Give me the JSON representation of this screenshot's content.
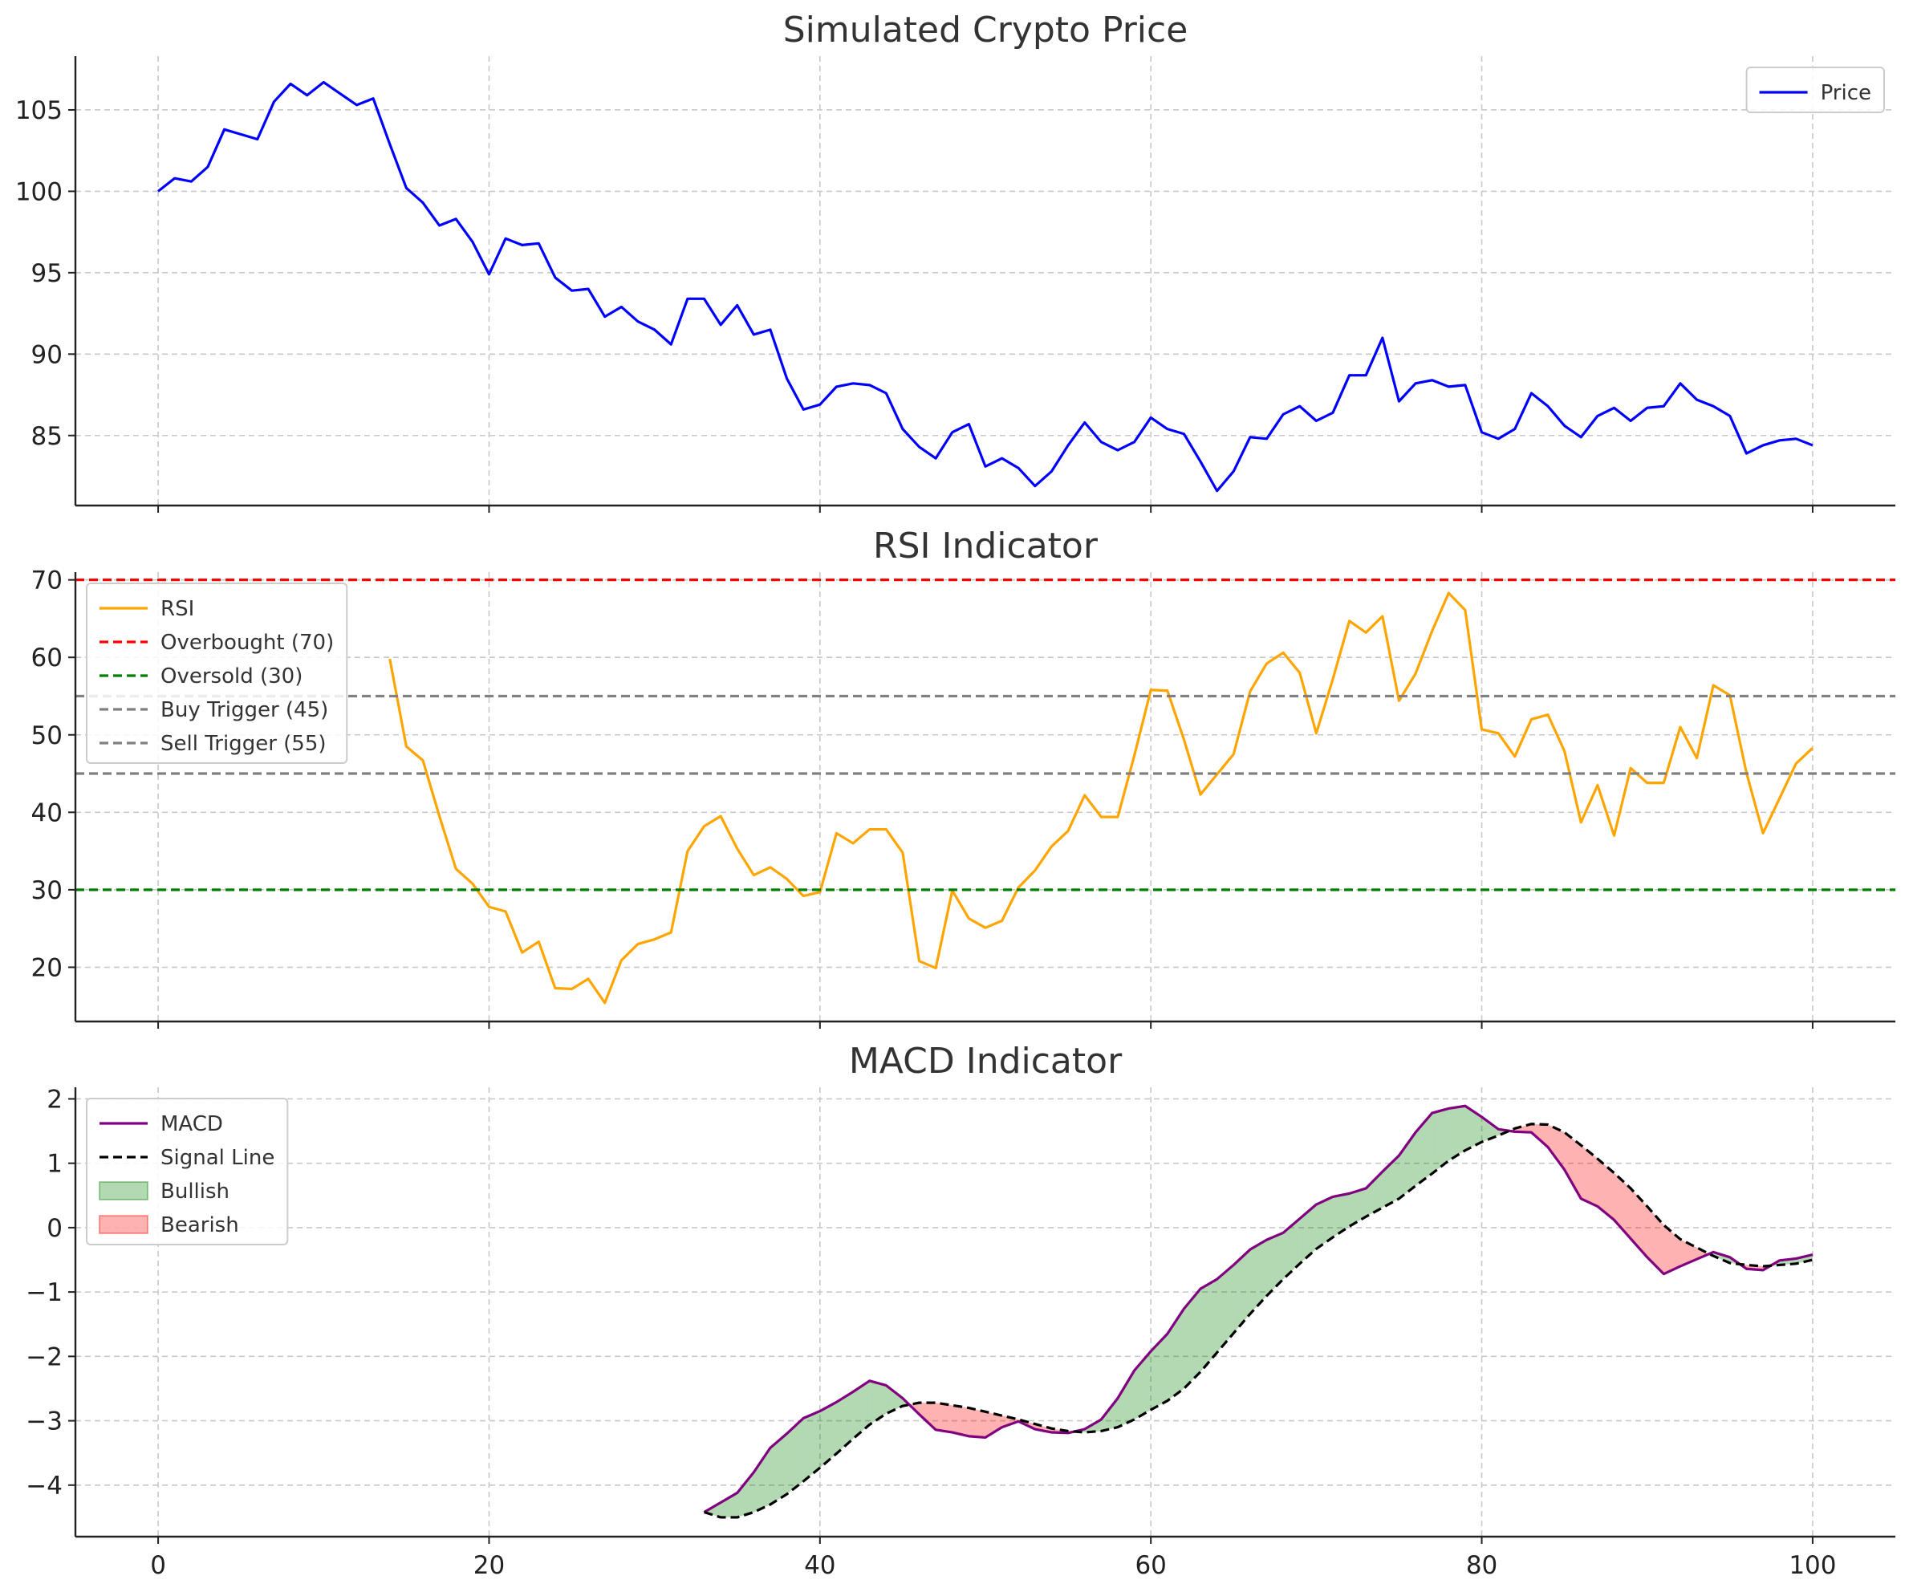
{
  "chart_data": [
    {
      "type": "line",
      "title": "Simulated Crypto Price",
      "xlabel": "",
      "ylabel": "",
      "xlim": [
        -5,
        105
      ],
      "ylim": [
        80.7,
        108.3
      ],
      "yticks": [
        85,
        90,
        95,
        100,
        105
      ],
      "grid": true,
      "legend_position": "top-right",
      "series": [
        {
          "name": "Price",
          "color": "#0000ff",
          "style": "solid",
          "x_start": 0,
          "values": [
            100.0,
            100.8,
            100.6,
            101.5,
            103.8,
            103.5,
            103.2,
            105.5,
            106.6,
            105.9,
            106.7,
            106.0,
            105.3,
            105.7,
            102.9,
            100.2,
            99.3,
            97.9,
            98.3,
            96.9,
            94.9,
            97.1,
            96.7,
            96.8,
            94.7,
            93.9,
            94.0,
            92.3,
            92.9,
            92.0,
            91.5,
            90.6,
            93.4,
            93.4,
            91.8,
            93.0,
            91.2,
            91.5,
            88.5,
            86.6,
            86.9,
            88.0,
            88.2,
            88.1,
            87.6,
            85.4,
            84.3,
            83.6,
            85.2,
            85.7,
            83.1,
            83.6,
            83.0,
            81.9,
            82.8,
            84.4,
            85.8,
            84.6,
            84.1,
            84.6,
            86.1,
            85.4,
            85.1,
            83.4,
            81.6,
            82.8,
            84.9,
            84.8,
            86.3,
            86.8,
            85.9,
            86.4,
            88.7,
            88.7,
            91.0,
            87.1,
            88.2,
            88.4,
            88.0,
            88.1,
            85.2,
            84.8,
            85.4,
            87.6,
            86.8,
            85.6,
            84.9,
            86.2,
            86.7,
            85.9,
            86.7,
            86.8,
            88.2,
            87.2,
            86.8,
            86.2,
            83.9,
            84.4,
            84.7,
            84.8,
            84.4
          ]
        }
      ]
    },
    {
      "type": "line",
      "title": "RSI Indicator",
      "xlabel": "",
      "ylabel": "",
      "xlim": [
        -5,
        105
      ],
      "ylim": [
        13.0,
        71.0
      ],
      "yticks": [
        20,
        30,
        40,
        50,
        60,
        70
      ],
      "grid": true,
      "legend_position": "top-left",
      "series": [
        {
          "name": "RSI",
          "color": "#ffa500",
          "style": "solid",
          "x_start": 14,
          "values": [
            59.8,
            48.5,
            46.7,
            39.5,
            32.7,
            30.8,
            27.8,
            27.2,
            21.9,
            23.3,
            17.3,
            17.2,
            18.5,
            15.4,
            20.9,
            23.0,
            23.6,
            24.5,
            35.0,
            38.2,
            39.5,
            35.3,
            31.9,
            32.9,
            31.4,
            29.2,
            29.7,
            37.3,
            36.0,
            37.8,
            37.8,
            34.8,
            20.8,
            19.9,
            29.9,
            26.3,
            25.1,
            26.0,
            30.3,
            32.5,
            35.6,
            37.6,
            42.2,
            39.4,
            39.4,
            47.3,
            55.8,
            55.7,
            49.4,
            42.3,
            44.9,
            47.5,
            55.6,
            59.2,
            60.6,
            58.0,
            50.2,
            57.2,
            64.7,
            63.2,
            65.3,
            54.4,
            57.9,
            63.4,
            68.3,
            66.1,
            50.7,
            50.2,
            47.2,
            52.0,
            52.6,
            47.9,
            38.7,
            43.5,
            37.0,
            45.7,
            43.8,
            43.8,
            51.0,
            47.0,
            56.4,
            55.1,
            45.1,
            37.3,
            41.8,
            46.3,
            48.3
          ]
        },
        {
          "name": "Overbought (70)",
          "color": "#ff0000",
          "style": "dashed",
          "y_value": 70
        },
        {
          "name": "Oversold (30)",
          "color": "#008000",
          "style": "dashed",
          "y_value": 30
        },
        {
          "name": "Buy Trigger (45)",
          "color": "#808080",
          "style": "dashed",
          "y_value": 45
        },
        {
          "name": "Sell Trigger (55)",
          "color": "#808080",
          "style": "dashed",
          "y_value": 55
        }
      ]
    },
    {
      "type": "line",
      "title": "MACD Indicator",
      "xlabel": "",
      "ylabel": "",
      "xlim": [
        -5,
        105
      ],
      "ylim": [
        -4.8,
        2.18
      ],
      "yticks": [
        -4,
        -3,
        -2,
        -1,
        0,
        1,
        2
      ],
      "xticks": [
        0,
        20,
        40,
        60,
        80,
        100
      ],
      "grid": true,
      "legend_position": "top-left",
      "series": [
        {
          "name": "MACD",
          "color": "#800080",
          "style": "solid",
          "x_start": 33,
          "values": [
            -4.42,
            -4.27,
            -4.12,
            -3.8,
            -3.42,
            -3.2,
            -2.96,
            -2.85,
            -2.71,
            -2.55,
            -2.38,
            -2.45,
            -2.65,
            -2.9,
            -3.14,
            -3.18,
            -3.24,
            -3.26,
            -3.1,
            -3.01,
            -3.13,
            -3.18,
            -3.19,
            -3.13,
            -2.98,
            -2.65,
            -2.22,
            -1.92,
            -1.65,
            -1.26,
            -0.95,
            -0.8,
            -0.58,
            -0.34,
            -0.19,
            -0.08,
            0.14,
            0.36,
            0.48,
            0.53,
            0.61,
            0.87,
            1.12,
            1.48,
            1.78,
            1.85,
            1.89,
            1.72,
            1.53,
            1.49,
            1.48,
            1.25,
            0.9,
            0.45,
            0.33,
            0.12,
            -0.17,
            -0.46,
            -0.72,
            -0.6,
            -0.49,
            -0.38,
            -0.46,
            -0.64,
            -0.66,
            -0.51,
            -0.48,
            -0.42
          ]
        },
        {
          "name": "Signal Line",
          "color": "#000000",
          "style": "dashed",
          "x_start": 33,
          "values": [
            -4.42,
            -4.5,
            -4.5,
            -4.42,
            -4.3,
            -4.14,
            -3.94,
            -3.73,
            -3.51,
            -3.28,
            -3.06,
            -2.89,
            -2.77,
            -2.72,
            -2.72,
            -2.76,
            -2.8,
            -2.86,
            -2.92,
            -2.98,
            -3.05,
            -3.12,
            -3.16,
            -3.18,
            -3.16,
            -3.1,
            -2.98,
            -2.83,
            -2.69,
            -2.5,
            -2.24,
            -1.94,
            -1.64,
            -1.34,
            -1.06,
            -0.8,
            -0.56,
            -0.33,
            -0.15,
            0.02,
            0.17,
            0.31,
            0.45,
            0.65,
            0.84,
            1.04,
            1.2,
            1.33,
            1.43,
            1.54,
            1.61,
            1.6,
            1.48,
            1.28,
            1.07,
            0.85,
            0.61,
            0.33,
            0.04,
            -0.18,
            -0.31,
            -0.44,
            -0.55,
            -0.58,
            -0.6,
            -0.58,
            -0.56,
            -0.5
          ]
        },
        {
          "name": "Bullish",
          "color": "#008000",
          "style": "fill",
          "opacity": 0.3
        },
        {
          "name": "Bearish",
          "color": "#ff0000",
          "style": "fill",
          "opacity": 0.3
        }
      ]
    }
  ]
}
